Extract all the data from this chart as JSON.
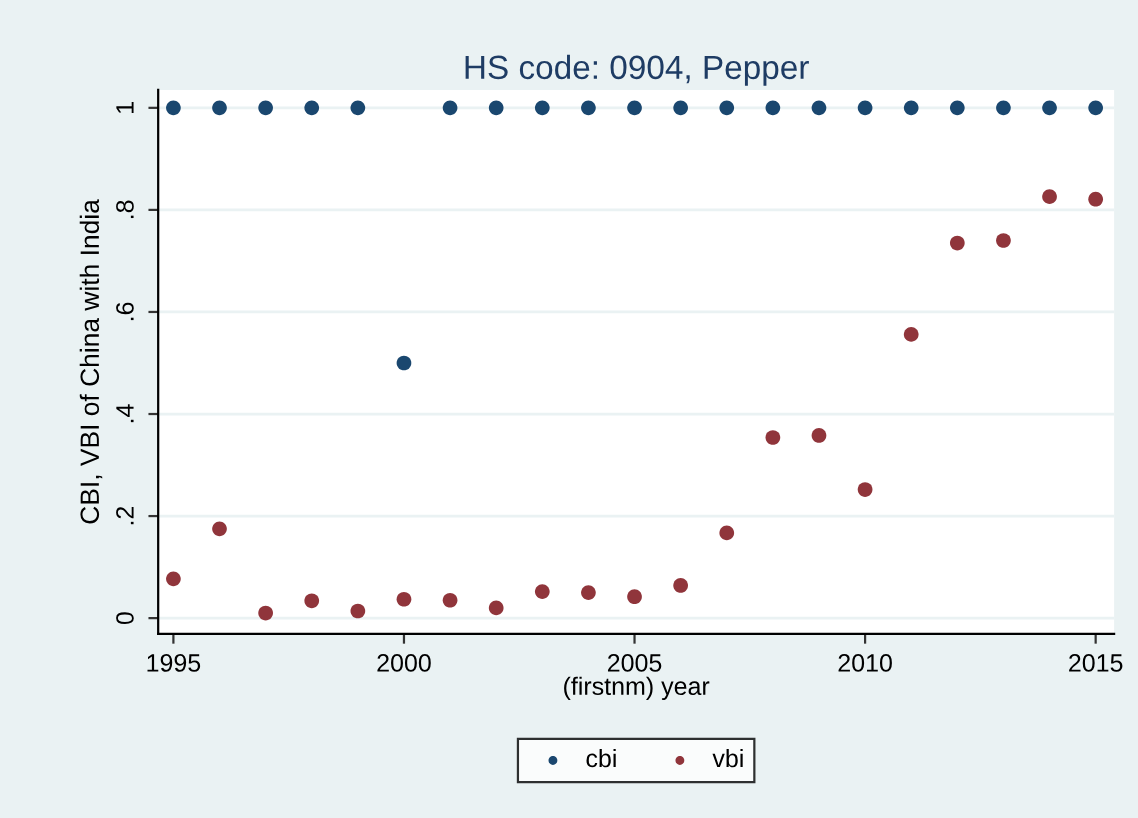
{
  "chart_data": {
    "type": "scatter",
    "title": "HS code: 0904, Pepper",
    "xlabel": "(firstnm) year",
    "ylabel": "CBI, VBI of China with India",
    "x": [
      1995,
      1996,
      1997,
      1998,
      1999,
      2000,
      2001,
      2002,
      2003,
      2004,
      2005,
      2006,
      2007,
      2008,
      2009,
      2010,
      2011,
      2012,
      2013,
      2014,
      2015
    ],
    "series": [
      {
        "name": "cbi",
        "color": "#1a476f",
        "values": [
          1,
          1,
          1,
          1,
          1,
          0.5,
          1,
          1,
          1,
          1,
          1,
          1,
          1,
          1,
          1,
          1,
          1,
          1,
          1,
          1,
          1
        ]
      },
      {
        "name": "vbi",
        "color": "#90353b",
        "values": [
          0.077,
          0.175,
          0.01,
          0.034,
          0.014,
          0.037,
          0.035,
          0.02,
          0.052,
          0.05,
          0.042,
          0.064,
          0.167,
          0.354,
          0.358,
          0.252,
          0.556,
          0.735,
          0.74,
          0.826,
          0.821
        ]
      }
    ],
    "xlim": [
      1994.67,
      2015.4
    ],
    "xticks": [
      1995,
      2000,
      2005,
      2010,
      2015
    ],
    "ylim": [
      -0.031,
      1.035
    ],
    "yticks": [
      {
        "value": 0,
        "label": "0"
      },
      {
        "value": 0.2,
        "label": ".2"
      },
      {
        "value": 0.4,
        "label": ".4"
      },
      {
        "value": 0.6,
        "label": ".6"
      },
      {
        "value": 0.8,
        "label": ".8"
      },
      {
        "value": 1,
        "label": "1"
      }
    ],
    "grid": "y",
    "legend": "bottom",
    "marker": "circle"
  }
}
